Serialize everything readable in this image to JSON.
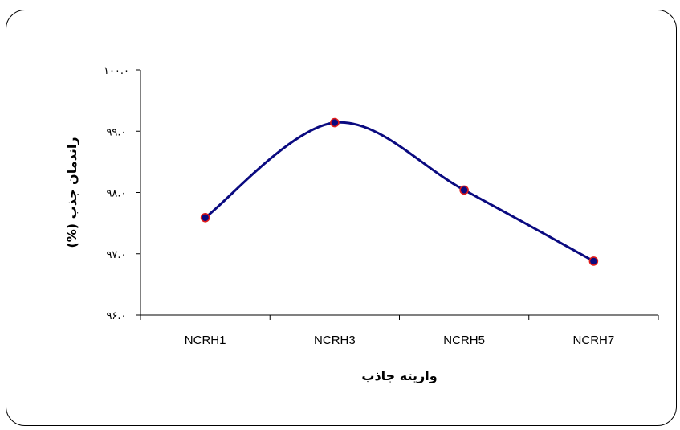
{
  "chart_data": {
    "type": "line",
    "categories": [
      "NCRH1",
      "NCRH3",
      "NCRH5",
      "NCRH7"
    ],
    "series": [
      {
        "values": [
          97.59,
          99.14,
          98.04,
          96.88
        ]
      }
    ],
    "ylim": [
      96.0,
      100.0
    ],
    "yticks": [
      96.0,
      97.0,
      98.0,
      99.0,
      100.0
    ],
    "ytick_labels": [
      "۹۶.۰",
      "۹۷.۰",
      "۹۸.۰",
      "۹۹.۰",
      "۱۰۰.۰"
    ],
    "xlabel": "واریته جاذب",
    "ylabel": "راندمان جذب (%)",
    "grid": false,
    "smooth": true,
    "colors": {
      "line": "#0a0a80",
      "marker_fill": "#0a0a80",
      "marker_edge": "#e01b1b"
    }
  }
}
